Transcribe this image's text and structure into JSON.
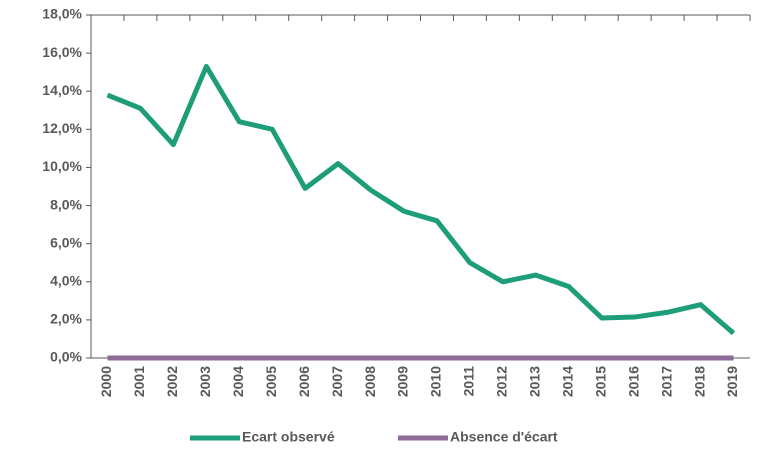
{
  "chart_data": {
    "type": "line",
    "categories": [
      "2000",
      "2001",
      "2002",
      "2003",
      "2004",
      "2005",
      "2006",
      "2007",
      "2008",
      "2009",
      "2010",
      "2011",
      "2012",
      "2013",
      "2014",
      "2015",
      "2016",
      "2017",
      "2018",
      "2019"
    ],
    "series": [
      {
        "name": "Ecart observé",
        "color": "#1e9e78",
        "values": [
          13.8,
          13.1,
          11.2,
          15.3,
          12.4,
          12.0,
          8.9,
          10.2,
          8.8,
          7.7,
          7.2,
          5.0,
          4.0,
          4.35,
          3.75,
          2.1,
          2.15,
          2.4,
          2.8,
          1.3
        ]
      },
      {
        "name": "Absence d'écart",
        "color": "#8e6a96",
        "values": [
          0,
          0,
          0,
          0,
          0,
          0,
          0,
          0,
          0,
          0,
          0,
          0,
          0,
          0,
          0,
          0,
          0,
          0,
          0,
          0
        ]
      }
    ],
    "ylim": [
      0,
      18
    ],
    "yticks": [
      {
        "value": 0,
        "label": "0,0%"
      },
      {
        "value": 2,
        "label": "2,0%"
      },
      {
        "value": 4,
        "label": "4,0%"
      },
      {
        "value": 6,
        "label": "6,0%"
      },
      {
        "value": 8,
        "label": "8,0%"
      },
      {
        "value": 10,
        "label": "10,0%"
      },
      {
        "value": 12,
        "label": "12,0%"
      },
      {
        "value": 14,
        "label": "14,0%"
      },
      {
        "value": 16,
        "label": "16,0%"
      },
      {
        "value": 18,
        "label": "18,0%"
      }
    ],
    "legend": "bottom"
  }
}
